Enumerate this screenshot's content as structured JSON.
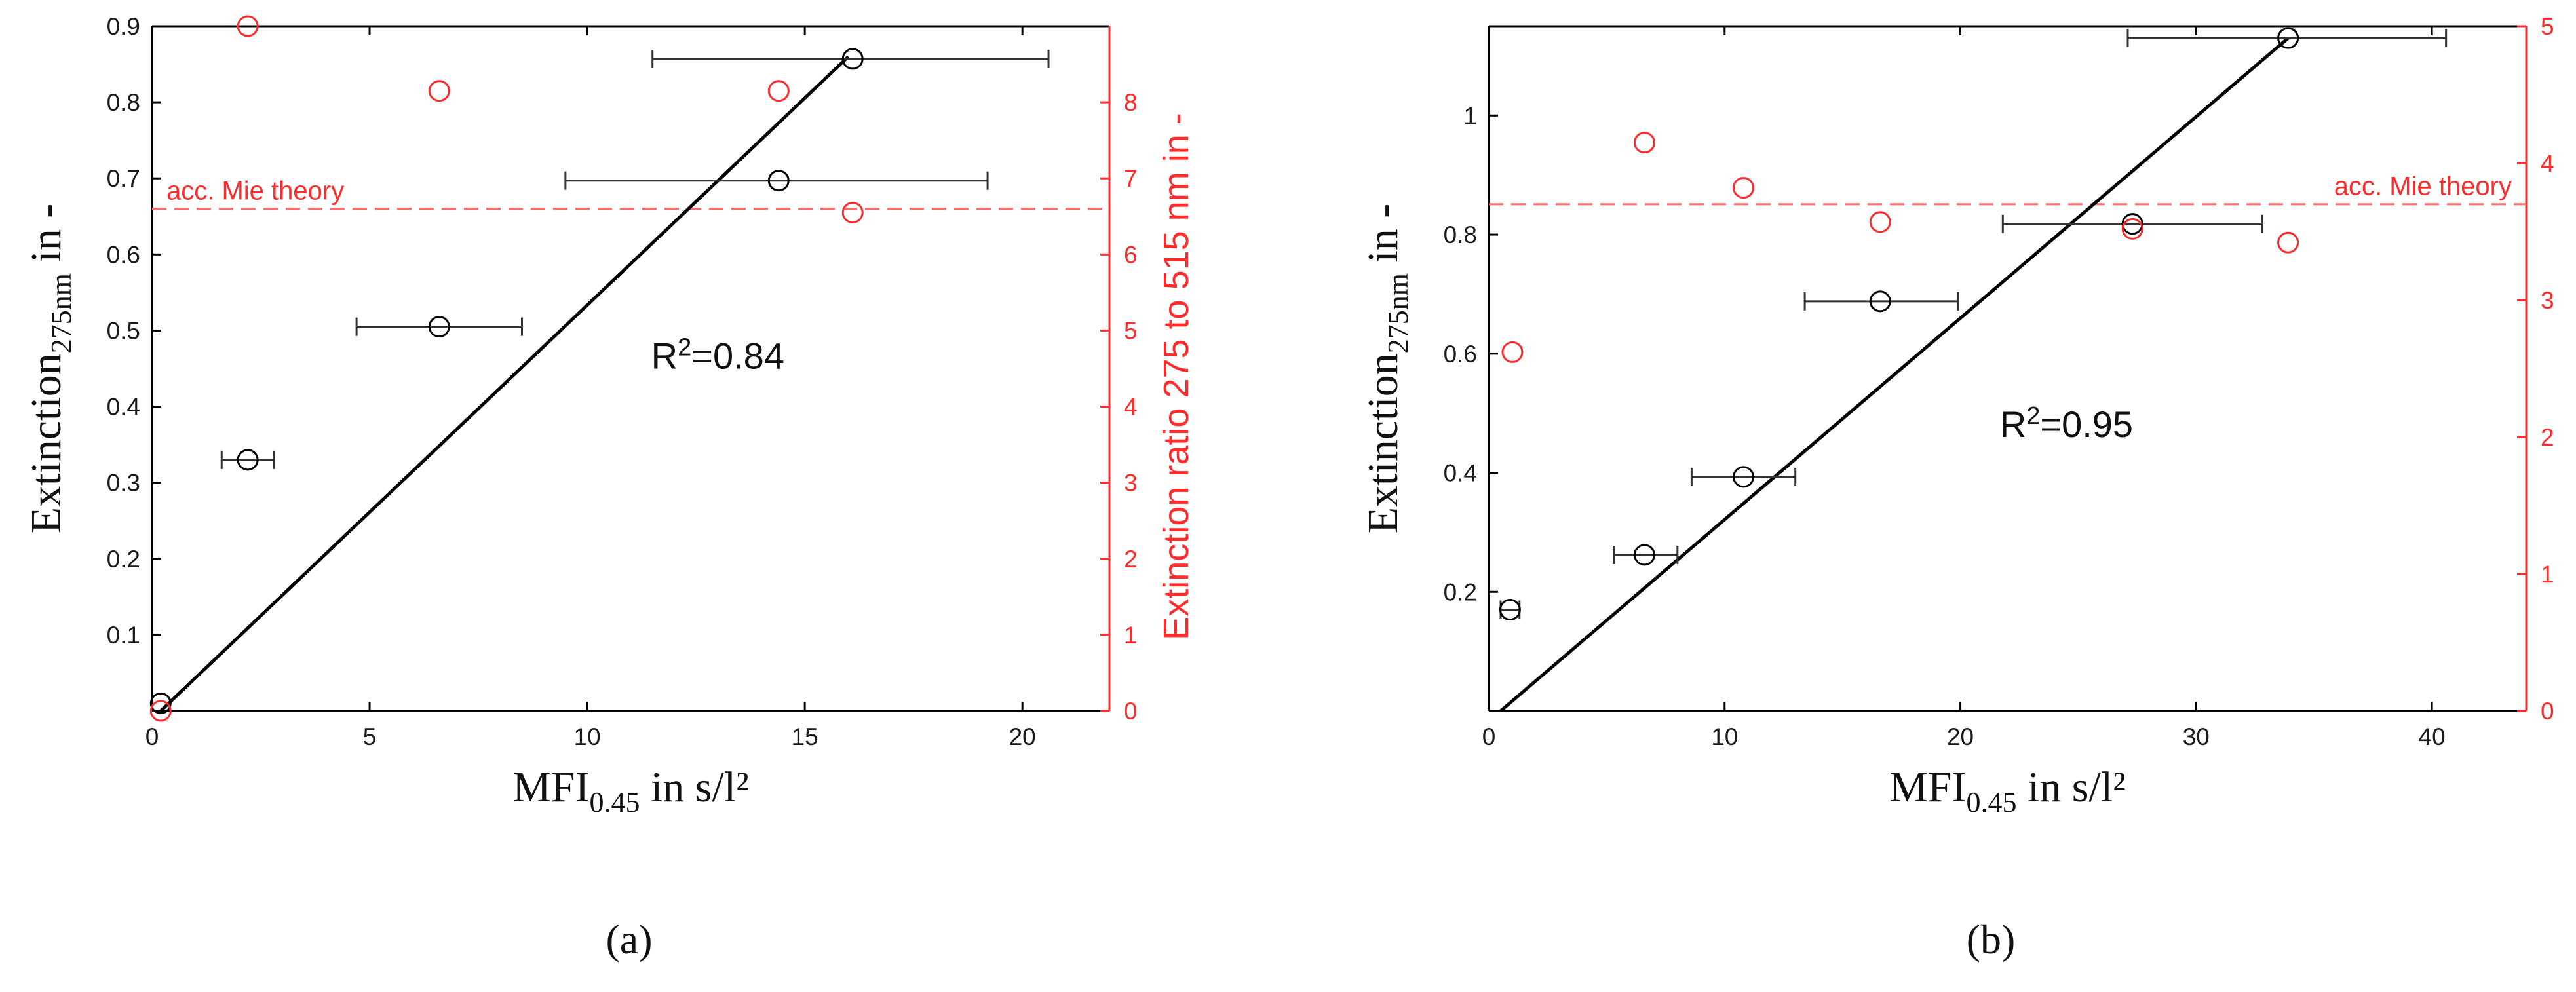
{
  "chart_data": [
    {
      "type": "scatter",
      "panel_label": "(a)",
      "xlabel": {
        "main": "MFI",
        "sub": "0.45",
        "rest": " in s/l²"
      },
      "ylabel_left": {
        "main": "Extinction",
        "sub": "275nm",
        "rest": " in -"
      },
      "ylabel_right": "Extinction ratio 275 to 515 nm in -",
      "xlim": [
        0,
        22
      ],
      "ylim_left": [
        0,
        0.9
      ],
      "ylim_right": [
        0,
        9
      ],
      "xticks": [
        0,
        5,
        10,
        15,
        20
      ],
      "yticks_left": [
        0.1,
        0.2,
        0.3,
        0.4,
        0.5,
        0.6,
        0.7,
        0.8,
        0.9
      ],
      "yticks_right": [
        0,
        1,
        2,
        3,
        4,
        5,
        6,
        7,
        8
      ],
      "grid": false,
      "colors": {
        "left_axis": "#000000",
        "right_axis": "#ff2a2a",
        "fit_line": "#000000",
        "reference": "#ff6b6b"
      },
      "series": [
        {
          "axis": "left",
          "color": "#000000",
          "marker": "open-circle",
          "points": [
            {
              "x": 0.2,
              "y": 0.01
            },
            {
              "x": 2.2,
              "y": 0.33,
              "xerr": [
                1.6,
                2.8
              ]
            },
            {
              "x": 6.6,
              "y": 0.505,
              "xerr": [
                4.7,
                8.5
              ]
            },
            {
              "x": 14.4,
              "y": 0.697,
              "xerr": [
                9.5,
                19.2
              ]
            },
            {
              "x": 16.1,
              "y": 0.857,
              "xerr": [
                11.5,
                20.6
              ]
            }
          ]
        },
        {
          "axis": "right",
          "color": "#ff2a2a",
          "marker": "open-circle",
          "points": [
            {
              "x": 0.2,
              "y": 0.0
            },
            {
              "x": 2.2,
              "y": 9.0
            },
            {
              "x": 6.6,
              "y": 8.15
            },
            {
              "x": 14.4,
              "y": 8.15
            },
            {
              "x": 16.1,
              "y": 6.55
            }
          ]
        }
      ],
      "fit_line": {
        "x": [
          0.2,
          16.0
        ],
        "y": [
          0.0,
          0.86
        ],
        "annotation": {
          "prefix": "R",
          "sup": "2",
          "suffix": "=0.84",
          "x": 13,
          "y": 0.45
        }
      },
      "reference_line": {
        "axis": "right",
        "y": 6.6,
        "label": "acc. Mie theory"
      }
    },
    {
      "type": "scatter",
      "panel_label": "(b)",
      "xlabel": {
        "main": "MFI",
        "sub": "0.45",
        "rest": " in s/l²"
      },
      "ylabel_left": {
        "main": "Extinction",
        "sub": "275nm",
        "rest": " in -"
      },
      "ylabel_right": "Extinction ratio 275 to 515 nm in -",
      "xlim": [
        0,
        44
      ],
      "ylim_left": [
        0,
        1.15
      ],
      "ylim_right": [
        0,
        5
      ],
      "xticks": [
        0,
        10,
        20,
        30,
        40
      ],
      "yticks_left": [
        0.2,
        0.4,
        0.6,
        0.8,
        1
      ],
      "yticks_right": [
        0,
        1,
        2,
        3,
        4,
        5
      ],
      "grid": false,
      "colors": {
        "left_axis": "#000000",
        "right_axis": "#ff2a2a",
        "fit_line": "#000000",
        "reference": "#ff6b6b"
      },
      "series": [
        {
          "axis": "left",
          "color": "#000000",
          "marker": "open-circle",
          "points": [
            {
              "x": 0.9,
              "y": 0.17,
              "xerr": [
                0.5,
                1.3
              ]
            },
            {
              "x": 6.6,
              "y": 0.262,
              "xerr": [
                5.3,
                8.0
              ]
            },
            {
              "x": 10.8,
              "y": 0.393,
              "xerr": [
                8.6,
                13.0
              ]
            },
            {
              "x": 16.6,
              "y": 0.688,
              "xerr": [
                13.4,
                19.9
              ]
            },
            {
              "x": 27.3,
              "y": 0.818,
              "xerr": [
                21.8,
                32.8
              ]
            },
            {
              "x": 33.9,
              "y": 1.13,
              "xerr": [
                27.1,
                40.6
              ]
            }
          ]
        },
        {
          "axis": "right",
          "color": "#ff2a2a",
          "marker": "open-circle",
          "points": [
            {
              "x": 1.0,
              "y": 2.62
            },
            {
              "x": 6.6,
              "y": 4.15
            },
            {
              "x": 10.8,
              "y": 3.82
            },
            {
              "x": 16.6,
              "y": 3.57
            },
            {
              "x": 27.3,
              "y": 3.52
            },
            {
              "x": 33.9,
              "y": 3.42
            }
          ]
        }
      ],
      "fit_line": {
        "x": [
          0.5,
          33.9
        ],
        "y": [
          0.0,
          1.13
        ],
        "annotation": {
          "prefix": "R",
          "sup": "2",
          "suffix": "=0.95",
          "x": 24.5,
          "y": 0.46
        }
      },
      "reference_line": {
        "axis": "right",
        "y": 3.7,
        "label": "acc. Mie theory"
      }
    }
  ]
}
